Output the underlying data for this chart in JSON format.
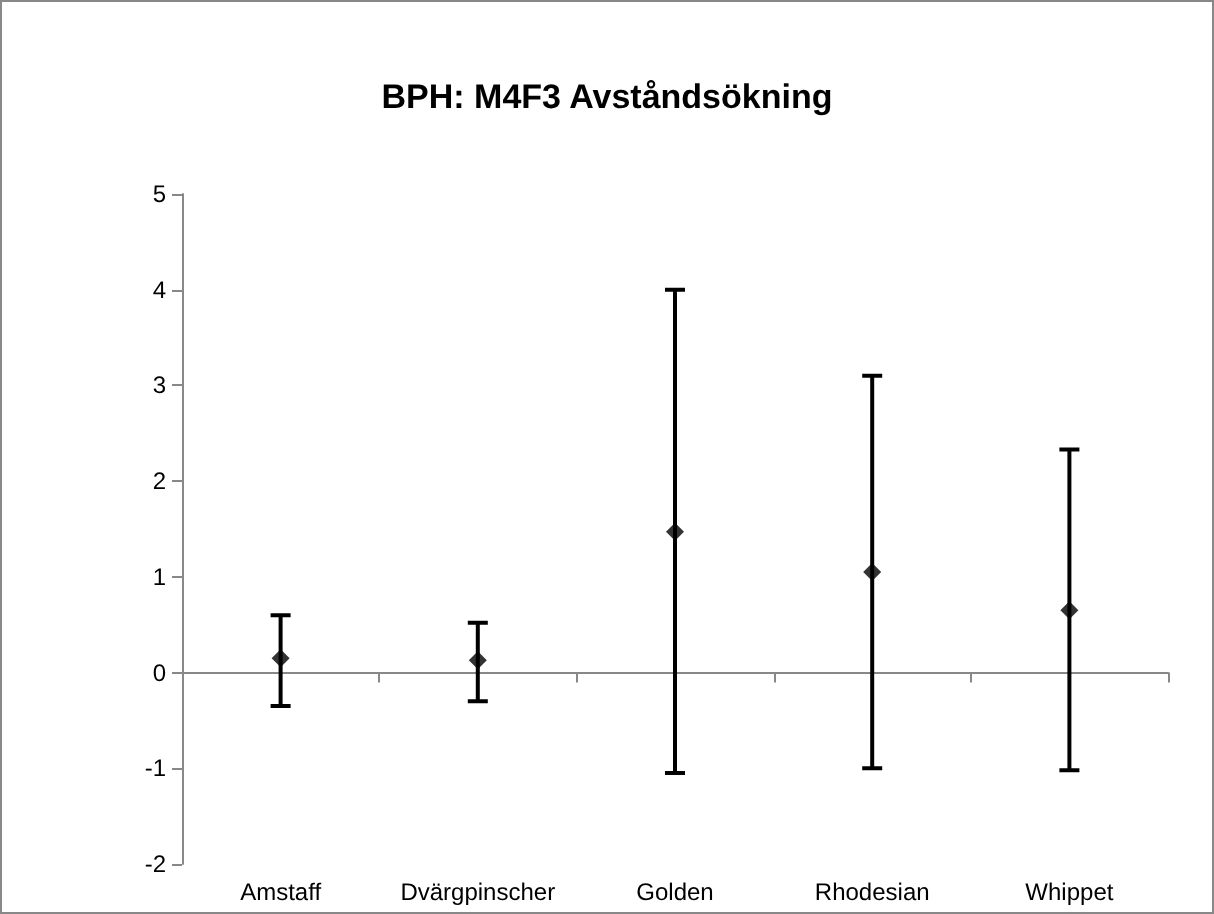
{
  "chart_data": {
    "type": "scatter",
    "title": "BPH: M4F3 Avståndsökning",
    "categories": [
      "Amstaff",
      "Dvärgpinscher",
      "Golden",
      "Rhodesian",
      "Whippet"
    ],
    "values": [
      0.15,
      0.13,
      1.47,
      1.05,
      0.65
    ],
    "errors": [
      [
        -0.35,
        0.6
      ],
      [
        -0.3,
        0.52
      ],
      [
        -1.05,
        4.0
      ],
      [
        -1.0,
        3.1
      ],
      [
        -1.02,
        2.33
      ]
    ],
    "color": "#000000",
    "marker": "diamond",
    "ylim": [
      -2,
      5
    ],
    "yticks": [
      -2,
      -1,
      0,
      1,
      2,
      3,
      4,
      5
    ],
    "grid": false
  }
}
